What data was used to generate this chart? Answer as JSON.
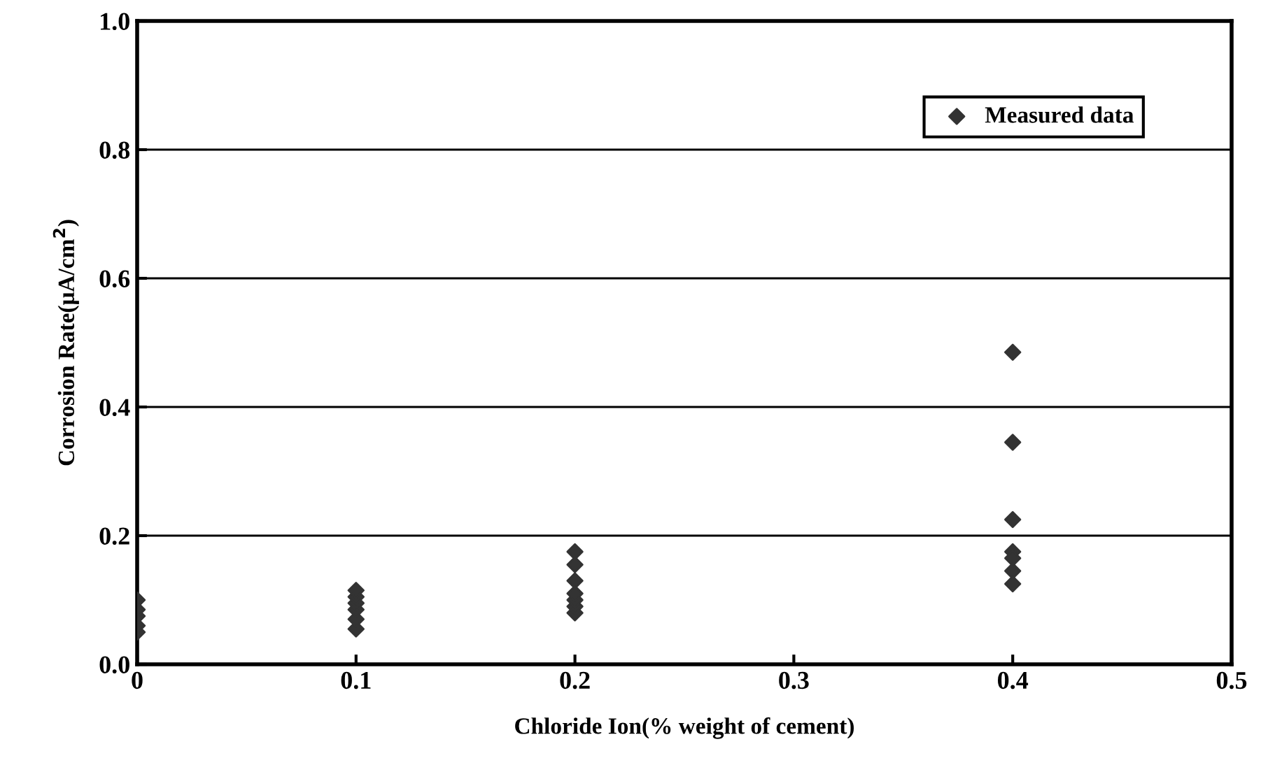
{
  "chart_data": {
    "type": "scatter",
    "xlabel": "Chloride Ion(% weight of cement)",
    "ylabel": "Corrosion Rate(μA/cm$^{2}$)",
    "series": [
      {
        "name": "Measured data",
        "color": "#333333",
        "x": [
          0,
          0,
          0,
          0,
          0,
          0.1,
          0.1,
          0.1,
          0.1,
          0.1,
          0.1,
          0.2,
          0.2,
          0.2,
          0.2,
          0.2,
          0.2,
          0.2,
          0.4,
          0.4,
          0.4,
          0.4,
          0.4,
          0.4,
          0.4
        ],
        "values": [
          0.05,
          0.06,
          0.075,
          0.085,
          0.1,
          0.055,
          0.07,
          0.085,
          0.095,
          0.105,
          0.115,
          0.08,
          0.09,
          0.1,
          0.11,
          0.13,
          0.155,
          0.175,
          0.485,
          0.345,
          0.225,
          0.175,
          0.165,
          0.145,
          0.125
        ]
      }
    ],
    "xlim": [
      0,
      0.5
    ],
    "xticks": [
      {
        "value": 0,
        "label": "0"
      },
      0.1,
      0.2,
      0.3,
      0.4,
      0.5
    ],
    "ylim": [
      0,
      1.0
    ],
    "yticks": [
      {
        "value": 0,
        "label": "0.0"
      },
      0.2,
      0.4,
      0.6,
      0.8,
      {
        "value": 1.0,
        "label": "1.0"
      }
    ],
    "grid": "y",
    "legend": "top right",
    "marker": "diamond"
  }
}
